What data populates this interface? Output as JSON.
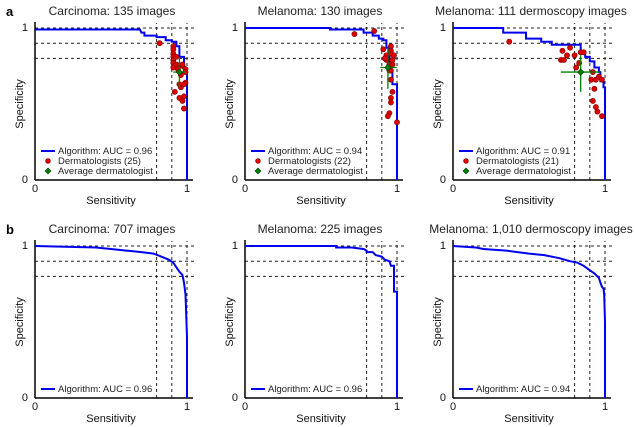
{
  "chart_data": [
    {
      "type": "line",
      "panel_letter": "a",
      "row": 0,
      "col": 0,
      "title": "Carcinoma: 135 images",
      "xlabel": "Sensitivity",
      "ylabel": "Specificity",
      "xlim": [
        0,
        1
      ],
      "ylim": [
        0,
        1
      ],
      "x_ticks": [
        "0",
        "1"
      ],
      "y_ticks": [
        "0",
        "1"
      ],
      "reference_lines": {
        "x": [
          0.8,
          0.9,
          1.0
        ],
        "y": [
          1.0,
          0.9,
          0.8
        ]
      },
      "legend": [
        "Algorithm: AUC = 0.96",
        "Dermatologists (25)",
        "Average dermatologist"
      ],
      "legend_position": "bottom-left",
      "curve": {
        "name": "Algorithm",
        "auc": 0.96,
        "color": "#0000ee",
        "points": [
          [
            0,
            0.99
          ],
          [
            0.69,
            0.99
          ],
          [
            0.7,
            0.97
          ],
          [
            0.72,
            0.97
          ],
          [
            0.72,
            0.95
          ],
          [
            0.8,
            0.95
          ],
          [
            0.8,
            0.94
          ],
          [
            0.86,
            0.94
          ],
          [
            0.86,
            0.92
          ],
          [
            0.9,
            0.92
          ],
          [
            0.9,
            0.91
          ],
          [
            0.93,
            0.91
          ],
          [
            0.93,
            0.88
          ],
          [
            0.95,
            0.88
          ],
          [
            0.95,
            0.81
          ],
          [
            0.98,
            0.81
          ],
          [
            0.98,
            0.74
          ],
          [
            0.99,
            0.74
          ],
          [
            0.99,
            0.7
          ],
          [
            1.0,
            0.7
          ],
          [
            1.0,
            0
          ]
        ]
      },
      "dermatologists": {
        "name": "Dermatologists",
        "count": 25,
        "color": "#dd0000",
        "points": [
          [
            0.82,
            0.9
          ],
          [
            0.91,
            0.88
          ],
          [
            0.91,
            0.83
          ],
          [
            0.91,
            0.81
          ],
          [
            0.91,
            0.79
          ],
          [
            0.91,
            0.77
          ],
          [
            0.91,
            0.74
          ],
          [
            0.94,
            0.73
          ],
          [
            0.93,
            0.76
          ],
          [
            0.97,
            0.75
          ],
          [
            0.99,
            0.73
          ],
          [
            0.99,
            0.64
          ],
          [
            0.96,
            0.61
          ],
          [
            0.92,
            0.58
          ],
          [
            0.95,
            0.63
          ],
          [
            0.98,
            0.63
          ],
          [
            0.95,
            0.54
          ],
          [
            0.97,
            0.52
          ],
          [
            0.98,
            0.55
          ],
          [
            0.98,
            0.47
          ],
          [
            0.97,
            0.76
          ],
          [
            0.93,
            0.81
          ],
          [
            0.99,
            0.71
          ],
          [
            0.91,
            0.86
          ],
          [
            0.96,
            0.69
          ]
        ]
      },
      "average_dermatologist": {
        "sensitivity": 0.95,
        "specificity": 0.71,
        "sens_err": [
          0.91,
          0.99
        ],
        "spec_err": [
          0.61,
          0.81
        ],
        "color": "#008000"
      }
    },
    {
      "type": "line",
      "row": 0,
      "col": 1,
      "title": "Melanoma: 130 images",
      "xlabel": "Sensitivity",
      "ylabel": "Specificity",
      "xlim": [
        0,
        1
      ],
      "ylim": [
        0,
        1
      ],
      "x_ticks": [
        "0",
        "1"
      ],
      "y_ticks": [
        "0",
        "1"
      ],
      "reference_lines": {
        "x": [
          0.8,
          0.9,
          1.0
        ],
        "y": [
          1.0,
          0.9,
          0.8
        ]
      },
      "legend": [
        "Algorithm: AUC = 0.94",
        "Dermatologists (22)",
        "Average dermatologist"
      ],
      "legend_position": "bottom-left",
      "curve": {
        "name": "Algorithm",
        "auc": 0.94,
        "color": "#0000ee",
        "points": [
          [
            0,
            1.0
          ],
          [
            0.56,
            1.0
          ],
          [
            0.56,
            0.99
          ],
          [
            0.78,
            0.99
          ],
          [
            0.78,
            0.97
          ],
          [
            0.84,
            0.97
          ],
          [
            0.84,
            0.95
          ],
          [
            0.88,
            0.95
          ],
          [
            0.88,
            0.93
          ],
          [
            0.91,
            0.93
          ],
          [
            0.91,
            0.92
          ],
          [
            0.93,
            0.92
          ],
          [
            0.93,
            0.87
          ],
          [
            0.95,
            0.87
          ],
          [
            0.95,
            0.72
          ],
          [
            0.97,
            0.72
          ],
          [
            0.97,
            0.63
          ],
          [
            1.0,
            0.63
          ],
          [
            1.0,
            0
          ]
        ]
      },
      "dermatologists": {
        "name": "Dermatologists",
        "count": 22,
        "color": "#dd0000",
        "points": [
          [
            0.72,
            0.96
          ],
          [
            0.85,
            0.98
          ],
          [
            0.91,
            0.86
          ],
          [
            0.93,
            0.82
          ],
          [
            0.96,
            0.85
          ],
          [
            0.96,
            0.83
          ],
          [
            0.97,
            0.79
          ],
          [
            0.93,
            0.79
          ],
          [
            0.95,
            0.76
          ],
          [
            0.96,
            0.72
          ],
          [
            0.96,
            0.66
          ],
          [
            0.97,
            0.58
          ],
          [
            0.96,
            0.54
          ],
          [
            0.96,
            0.51
          ],
          [
            0.95,
            0.44
          ],
          [
            1.0,
            0.38
          ],
          [
            0.94,
            0.42
          ],
          [
            0.95,
            0.72
          ],
          [
            0.97,
            0.76
          ],
          [
            0.92,
            0.8
          ],
          [
            0.96,
            0.88
          ],
          [
            0.98,
            0.82
          ]
        ]
      },
      "average_dermatologist": {
        "sensitivity": 0.94,
        "specificity": 0.74,
        "sens_err": [
          0.89,
          0.999
        ],
        "spec_err": [
          0.6,
          0.87
        ],
        "color": "#008000"
      }
    },
    {
      "type": "line",
      "row": 0,
      "col": 2,
      "title": "Melanoma: 111 dermoscopy images",
      "xlabel": "Sensitivity",
      "ylabel": "Specificity",
      "xlim": [
        0,
        1
      ],
      "ylim": [
        0,
        1
      ],
      "x_ticks": [
        "0",
        "1"
      ],
      "y_ticks": [
        "0",
        "1"
      ],
      "reference_lines": {
        "x": [
          0.8,
          0.9,
          1.0
        ],
        "y": [
          1.0,
          0.9,
          0.8
        ]
      },
      "legend": [
        "Algorithm: AUC = 0.91",
        "Dermatologists (21)",
        "Average dermatologist"
      ],
      "legend_position": "bottom-left",
      "curve": {
        "name": "Algorithm",
        "auc": 0.91,
        "color": "#0000ee",
        "points": [
          [
            0,
            1.0
          ],
          [
            0.33,
            1.0
          ],
          [
            0.33,
            0.97
          ],
          [
            0.48,
            0.97
          ],
          [
            0.48,
            0.93
          ],
          [
            0.58,
            0.93
          ],
          [
            0.58,
            0.91
          ],
          [
            0.65,
            0.91
          ],
          [
            0.65,
            0.89
          ],
          [
            0.84,
            0.89
          ],
          [
            0.84,
            0.83
          ],
          [
            0.87,
            0.83
          ],
          [
            0.87,
            0.81
          ],
          [
            0.9,
            0.81
          ],
          [
            0.9,
            0.78
          ],
          [
            0.93,
            0.78
          ],
          [
            0.93,
            0.74
          ],
          [
            0.96,
            0.74
          ],
          [
            0.96,
            0.71
          ],
          [
            0.97,
            0.71
          ],
          [
            0.97,
            0.65
          ],
          [
            0.99,
            0.65
          ],
          [
            0.99,
            0.61
          ],
          [
            1.0,
            0.61
          ],
          [
            1.0,
            0
          ]
        ]
      },
      "dermatologists": {
        "name": "Dermatologists",
        "count": 21,
        "color": "#dd0000",
        "points": [
          [
            0.37,
            0.91
          ],
          [
            0.77,
            0.87
          ],
          [
            0.72,
            0.85
          ],
          [
            0.75,
            0.82
          ],
          [
            0.84,
            0.84
          ],
          [
            0.8,
            0.82
          ],
          [
            0.71,
            0.79
          ],
          [
            0.73,
            0.79
          ],
          [
            0.83,
            0.77
          ],
          [
            0.81,
            0.74
          ],
          [
            0.86,
            0.84
          ],
          [
            0.92,
            0.71
          ],
          [
            0.94,
            0.66
          ],
          [
            0.91,
            0.66
          ],
          [
            0.96,
            0.68
          ],
          [
            0.98,
            0.66
          ],
          [
            0.93,
            0.6
          ],
          [
            0.92,
            0.52
          ],
          [
            0.94,
            0.48
          ],
          [
            0.95,
            0.45
          ],
          [
            0.98,
            0.42
          ]
        ]
      },
      "average_dermatologist": {
        "sensitivity": 0.84,
        "specificity": 0.71,
        "sens_err": [
          0.71,
          0.97
        ],
        "spec_err": [
          0.58,
          0.82
        ],
        "color": "#008000"
      }
    },
    {
      "type": "line",
      "panel_letter": "b",
      "row": 1,
      "col": 0,
      "title": "Carcinoma: 707 images",
      "xlabel": "Sensitivity",
      "ylabel": "Specificity",
      "xlim": [
        0,
        1
      ],
      "ylim": [
        0,
        1
      ],
      "x_ticks": [
        "0",
        "1"
      ],
      "y_ticks": [
        "0",
        "1"
      ],
      "reference_lines": {
        "x": [
          0.8,
          0.9,
          1.0
        ],
        "y": [
          1.0,
          0.9,
          0.8
        ]
      },
      "legend": [
        "Algorithm: AUC = 0.96"
      ],
      "legend_position": "bottom-left",
      "curve": {
        "name": "Algorithm",
        "auc": 0.96,
        "color": "#0000ee",
        "points": [
          [
            0,
            1.0
          ],
          [
            0.2,
            0.995
          ],
          [
            0.4,
            0.99
          ],
          [
            0.5,
            0.98
          ],
          [
            0.6,
            0.97
          ],
          [
            0.7,
            0.96
          ],
          [
            0.78,
            0.95
          ],
          [
            0.83,
            0.93
          ],
          [
            0.88,
            0.91
          ],
          [
            0.91,
            0.89
          ],
          [
            0.93,
            0.86
          ],
          [
            0.95,
            0.83
          ],
          [
            0.97,
            0.81
          ],
          [
            0.98,
            0.76
          ],
          [
            0.99,
            0.68
          ],
          [
            0.995,
            0.55
          ],
          [
            1.0,
            0.4
          ],
          [
            1.0,
            0
          ]
        ]
      }
    },
    {
      "type": "line",
      "row": 1,
      "col": 1,
      "title": "Melanoma: 225 images",
      "xlabel": "Sensitivity",
      "ylabel": "Specificity",
      "xlim": [
        0,
        1
      ],
      "ylim": [
        0,
        1
      ],
      "x_ticks": [
        "0",
        "1"
      ],
      "y_ticks": [
        "0",
        "1"
      ],
      "reference_lines": {
        "x": [
          0.8,
          0.9,
          1.0
        ],
        "y": [
          1.0,
          0.9,
          0.8
        ]
      },
      "legend": [
        "Algorithm: AUC = 0.96"
      ],
      "legend_position": "bottom-left",
      "curve": {
        "name": "Algorithm",
        "auc": 0.96,
        "color": "#0000ee",
        "points": [
          [
            0,
            1.0
          ],
          [
            0.6,
            1.0
          ],
          [
            0.6,
            0.99
          ],
          [
            0.7,
            0.99
          ],
          [
            0.78,
            0.98
          ],
          [
            0.8,
            0.97
          ],
          [
            0.8,
            0.96
          ],
          [
            0.84,
            0.96
          ],
          [
            0.86,
            0.94
          ],
          [
            0.9,
            0.93
          ],
          [
            0.92,
            0.91
          ],
          [
            0.95,
            0.9
          ],
          [
            0.96,
            0.87
          ],
          [
            0.98,
            0.87
          ],
          [
            0.98,
            0.7
          ],
          [
            1.0,
            0.7
          ],
          [
            1.0,
            0
          ]
        ]
      }
    },
    {
      "type": "line",
      "row": 1,
      "col": 2,
      "title": "Melanoma: 1,010 dermoscopy images",
      "xlabel": "Sensitivity",
      "ylabel": "Specificity",
      "xlim": [
        0,
        1
      ],
      "ylim": [
        0,
        1
      ],
      "x_ticks": [
        "0",
        "1"
      ],
      "y_ticks": [
        "0",
        "1"
      ],
      "reference_lines": {
        "x": [
          0.8,
          0.9,
          1.0
        ],
        "y": [
          1.0,
          0.9,
          0.8
        ]
      },
      "legend": [
        "Algorithm: AUC = 0.94"
      ],
      "legend_position": "bottom-left",
      "curve": {
        "name": "Algorithm",
        "auc": 0.94,
        "color": "#0000ee",
        "points": [
          [
            0,
            1.0
          ],
          [
            0.15,
            0.99
          ],
          [
            0.2,
            0.98
          ],
          [
            0.35,
            0.97
          ],
          [
            0.5,
            0.95
          ],
          [
            0.6,
            0.94
          ],
          [
            0.7,
            0.92
          ],
          [
            0.77,
            0.9
          ],
          [
            0.82,
            0.89
          ],
          [
            0.86,
            0.87
          ],
          [
            0.9,
            0.84
          ],
          [
            0.93,
            0.82
          ],
          [
            0.96,
            0.79
          ],
          [
            0.97,
            0.76
          ],
          [
            0.98,
            0.73
          ],
          [
            0.99,
            0.72
          ],
          [
            0.995,
            0.68
          ],
          [
            1.0,
            0.5
          ],
          [
            1.0,
            0
          ]
        ]
      }
    }
  ]
}
